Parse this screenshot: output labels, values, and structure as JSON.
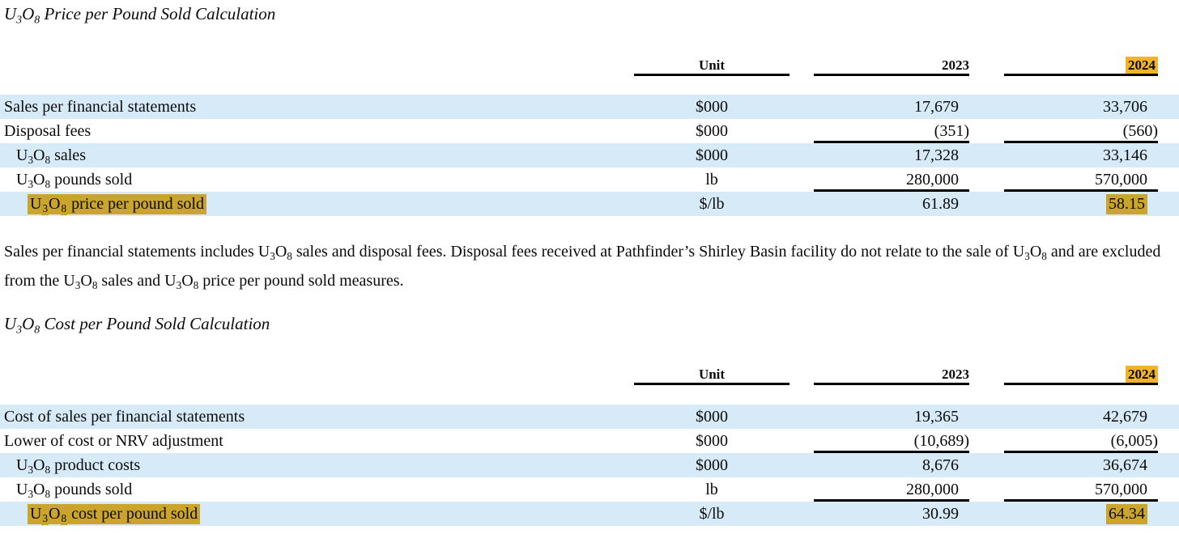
{
  "section1": {
    "title": "U3O8 Price per Pound Sold Calculation",
    "table": {
      "headers": {
        "unit": "Unit",
        "y2023": "2023",
        "y2024": "2024"
      },
      "rows": [
        {
          "label": "Sales per financial statements",
          "unit": "$000",
          "y2023": "17,679",
          "y2024": "33,706"
        },
        {
          "label": "Disposal fees",
          "unit": "$000",
          "y2023": "(351)",
          "y2024": "(560)"
        },
        {
          "label": "U3O8 sales",
          "unit": "$000",
          "y2023": "17,328",
          "y2024": "33,146"
        },
        {
          "label": "U3O8 pounds sold",
          "unit": "lb",
          "y2023": "280,000",
          "y2024": "570,000"
        },
        {
          "label": "U3O8 price per pound sold",
          "unit": "$/lb",
          "y2023": "61.89",
          "y2024": "58.15"
        }
      ]
    }
  },
  "note": "Sales per financial statements includes U3O8 sales and disposal fees. Disposal fees received at Pathfinder’s Shirley Basin facility do not relate to the sale of U3O8 and are excluded from the U3O8 sales and U3O8 price per pound sold measures.",
  "section2": {
    "title": "U3O8 Cost per Pound Sold Calculation",
    "table": {
      "headers": {
        "unit": "Unit",
        "y2023": "2023",
        "y2024": "2024"
      },
      "rows": [
        {
          "label": "Cost of sales per financial statements",
          "unit": "$000",
          "y2023": "19,365",
          "y2024": "42,679"
        },
        {
          "label": "Lower of cost or NRV adjustment",
          "unit": "$000",
          "y2023": "(10,689)",
          "y2024": "(6,005)"
        },
        {
          "label": "U3O8 product costs",
          "unit": "$000",
          "y2023": "8,676",
          "y2024": "36,674"
        },
        {
          "label": "U3O8 pounds sold",
          "unit": "lb",
          "y2023": "280,000",
          "y2024": "570,000"
        },
        {
          "label": "U3O8 cost per pound sold",
          "unit": "$/lb",
          "y2023": "30.99",
          "y2024": "64.34"
        }
      ]
    }
  },
  "colors": {
    "row_stripe": "#D7EAF8",
    "highlight": "#F1B32C"
  }
}
